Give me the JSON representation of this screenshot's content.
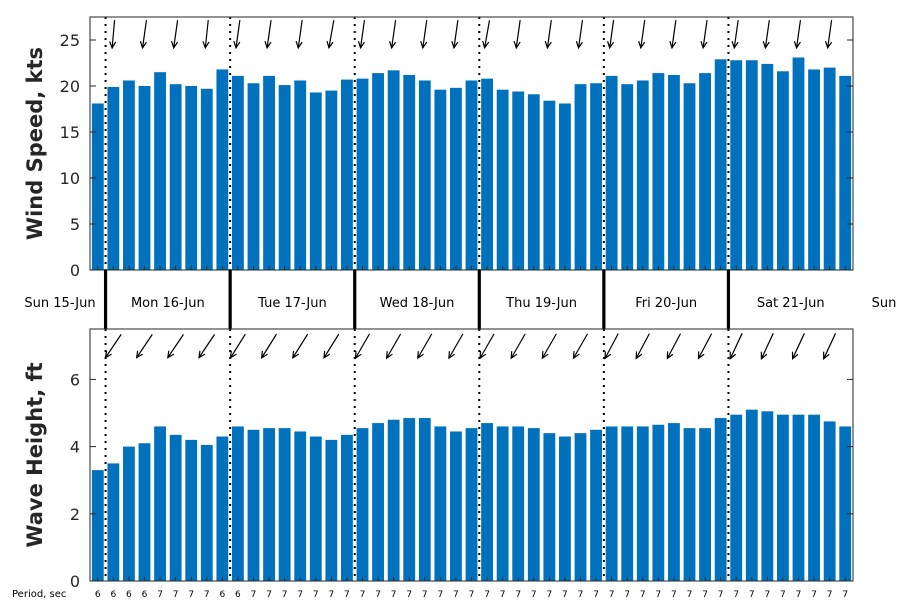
{
  "chart_data": [
    {
      "type": "bar",
      "ylabel": "Wind Speed, kts",
      "ylim": [
        0,
        27.5
      ],
      "yticks": [
        0,
        5,
        10,
        15,
        20,
        25
      ],
      "bar_color": "#0072bd",
      "values": [
        18.1,
        19.9,
        20.6,
        20.0,
        21.5,
        20.2,
        20.0,
        19.7,
        21.8,
        21.1,
        20.3,
        21.1,
        20.1,
        20.6,
        19.3,
        19.5,
        20.7,
        20.8,
        21.4,
        21.7,
        21.2,
        20.6,
        19.6,
        19.8,
        20.6,
        20.8,
        19.6,
        19.4,
        19.1,
        18.4,
        18.1,
        20.2,
        20.3,
        21.1,
        20.2,
        20.6,
        21.4,
        21.2,
        20.3,
        21.4,
        22.9,
        22.8,
        22.8,
        22.4,
        21.6,
        23.1,
        21.8,
        22.0,
        21.1
      ],
      "direction_deg": [
        265,
        265,
        260,
        262,
        258,
        262,
        260,
        264,
        265,
        262,
        260,
        262,
        260,
        262,
        262,
        260,
        262,
        262,
        262,
        262,
        262,
        262,
        262,
        262,
        262,
        260,
        262,
        262,
        262,
        262,
        262,
        262,
        262,
        262,
        262,
        262,
        262,
        262,
        262,
        262,
        262,
        262,
        262,
        262,
        262,
        262,
        262,
        262,
        262
      ],
      "grid": false
    },
    {
      "type": "bar",
      "ylabel": "Wave Height, ft",
      "ylim": [
        0,
        7.5
      ],
      "yticks": [
        0,
        2,
        4,
        6
      ],
      "bar_color": "#0072bd",
      "values": [
        3.3,
        3.5,
        4.0,
        4.1,
        4.6,
        4.35,
        4.2,
        4.05,
        4.3,
        4.6,
        4.5,
        4.55,
        4.55,
        4.45,
        4.3,
        4.2,
        4.35,
        4.55,
        4.7,
        4.8,
        4.85,
        4.85,
        4.6,
        4.45,
        4.55,
        4.7,
        4.6,
        4.6,
        4.55,
        4.4,
        4.3,
        4.4,
        4.5,
        4.6,
        4.6,
        4.6,
        4.65,
        4.7,
        4.55,
        4.55,
        4.85,
        4.95,
        5.1,
        5.05,
        4.95,
        4.95,
        4.95,
        4.75,
        4.6
      ],
      "direction_deg": [
        236,
        236,
        236,
        236,
        236,
        236,
        236,
        236,
        236,
        238,
        238,
        238,
        238,
        238,
        238,
        238,
        238,
        240,
        240,
        240,
        240,
        240,
        240,
        240,
        240,
        240,
        240,
        240,
        240,
        240,
        240,
        240,
        240,
        242,
        242,
        242,
        242,
        242,
        242,
        242,
        242,
        245,
        245,
        245,
        245,
        245,
        245,
        245,
        245
      ],
      "grid": false
    }
  ],
  "days": [
    "Sun 15-Jun",
    "Mon 16-Jun",
    "Tue 17-Jun",
    "Wed 18-Jun",
    "Thu 19-Jun",
    "Fri 20-Jun",
    "Sat 21-Jun",
    "Sun"
  ],
  "day_boundaries_index": [
    1,
    9,
    17,
    25,
    33,
    41
  ],
  "period_label": "Period, sec",
  "periods": [
    "6",
    "6",
    "6",
    "6",
    "7",
    "7",
    "7",
    "7",
    "6",
    "6",
    "7",
    "7",
    "7",
    "7",
    "7",
    "7",
    "7",
    "7",
    "7",
    "7",
    "7",
    "7",
    "7",
    "7",
    "7",
    "7",
    "7",
    "7",
    "7",
    "7",
    "7",
    "7",
    "7",
    "7",
    "7",
    "7",
    "7",
    "7",
    "7",
    "7",
    "7",
    "7",
    "7",
    "7",
    "7",
    "7",
    "7",
    "7",
    "7"
  ]
}
